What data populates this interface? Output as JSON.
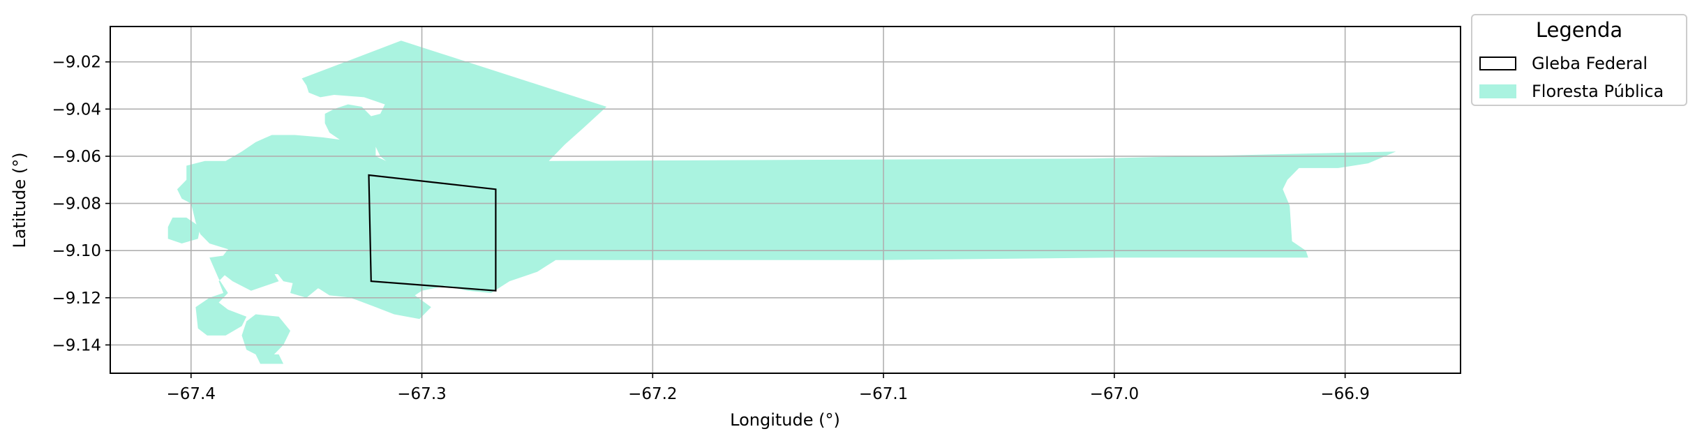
{
  "chart_data": {
    "type": "map",
    "xlabel": "Longitude (°)",
    "ylabel": "Latitude (°)",
    "xlim": [
      -67.435,
      -66.85
    ],
    "ylim": [
      -9.152,
      -9.005
    ],
    "xticks": [
      -67.4,
      -67.3,
      -67.2,
      -67.1,
      -67.0,
      -66.9
    ],
    "xtick_labels": [
      "−67.4",
      "−67.3",
      "−67.2",
      "−67.1",
      "−67.0",
      "−66.9"
    ],
    "yticks": [
      -9.02,
      -9.04,
      -9.06,
      -9.08,
      -9.1,
      -9.12,
      -9.14
    ],
    "ytick_labels": [
      "−9.02",
      "−9.04",
      "−9.06",
      "−9.08",
      "−9.10",
      "−9.12",
      "−9.14"
    ],
    "grid": true,
    "legend": {
      "title": "Legenda",
      "placement": "outside-top-right",
      "items": [
        {
          "label": "Gleba Federal",
          "style": "outline",
          "color": "#000000"
        },
        {
          "label": "Floresta Pública",
          "style": "fill",
          "color": "#aaf3e0"
        }
      ]
    },
    "layers": [
      {
        "name": "Floresta Pública",
        "color": "#aaf3e0",
        "polygons": [
          [
            [
              -67.352,
              -9.027
            ],
            [
              -67.309,
              -9.011
            ],
            [
              -67.22,
              -9.039
            ],
            [
              -67.23,
              -9.048
            ],
            [
              -67.238,
              -9.055
            ],
            [
              -67.245,
              -9.062
            ],
            [
              -67.01,
              -9.061
            ],
            [
              -66.878,
              -9.058
            ],
            [
              -66.89,
              -9.063
            ],
            [
              -66.903,
              -9.065
            ],
            [
              -66.92,
              -9.065
            ],
            [
              -66.925,
              -9.07
            ],
            [
              -66.927,
              -9.074
            ],
            [
              -66.924,
              -9.081
            ],
            [
              -66.923,
              -9.096
            ],
            [
              -66.917,
              -9.1
            ],
            [
              -66.916,
              -9.103
            ],
            [
              -66.95,
              -9.103
            ],
            [
              -67.0,
              -9.103
            ],
            [
              -67.1,
              -9.104
            ],
            [
              -67.2,
              -9.104
            ],
            [
              -67.242,
              -9.104
            ],
            [
              -67.25,
              -9.109
            ],
            [
              -67.262,
              -9.113
            ],
            [
              -67.27,
              -9.118
            ],
            [
              -67.28,
              -9.117
            ],
            [
              -67.29,
              -9.115
            ],
            [
              -67.3,
              -9.117
            ],
            [
              -67.303,
              -9.119
            ],
            [
              -67.296,
              -9.124
            ],
            [
              -67.301,
              -9.129
            ],
            [
              -67.312,
              -9.127
            ],
            [
              -67.32,
              -9.124
            ],
            [
              -67.328,
              -9.121
            ],
            [
              -67.34,
              -9.117
            ],
            [
              -67.36,
              -9.113
            ],
            [
              -67.364,
              -9.108
            ],
            [
              -67.362,
              -9.104
            ],
            [
              -67.36,
              -9.098
            ],
            [
              -67.356,
              -9.094
            ],
            [
              -67.35,
              -9.09
            ],
            [
              -67.342,
              -9.09
            ],
            [
              -67.33,
              -9.089
            ],
            [
              -67.32,
              -9.087
            ],
            [
              -67.31,
              -9.086
            ],
            [
              -67.302,
              -9.082
            ],
            [
              -67.304,
              -9.076
            ],
            [
              -67.308,
              -9.068
            ],
            [
              -67.318,
              -9.06
            ],
            [
              -67.32,
              -9.056
            ],
            [
              -67.334,
              -9.054
            ],
            [
              -67.34,
              -9.05
            ],
            [
              -67.342,
              -9.046
            ],
            [
              -67.342,
              -9.042
            ],
            [
              -67.338,
              -9.04
            ],
            [
              -67.332,
              -9.038
            ],
            [
              -67.326,
              -9.039
            ],
            [
              -67.322,
              -9.043
            ],
            [
              -67.318,
              -9.042
            ],
            [
              -67.316,
              -9.038
            ],
            [
              -67.325,
              -9.035
            ],
            [
              -67.338,
              -9.034
            ],
            [
              -67.344,
              -9.035
            ],
            [
              -67.349,
              -9.033
            ],
            [
              -67.35,
              -9.03
            ]
          ],
          [
            [
              -67.343,
              -9.052
            ],
            [
              -67.32,
              -9.055
            ],
            [
              -67.32,
              -9.06
            ],
            [
              -67.302,
              -9.068
            ],
            [
              -67.3,
              -9.082
            ],
            [
              -67.306,
              -9.09
            ],
            [
              -67.3,
              -9.098
            ],
            [
              -67.312,
              -9.105
            ],
            [
              -67.318,
              -9.112
            ],
            [
              -67.322,
              -9.116
            ],
            [
              -67.33,
              -9.12
            ],
            [
              -67.34,
              -9.119
            ],
            [
              -67.348,
              -9.114
            ],
            [
              -67.36,
              -9.11
            ],
            [
              -67.372,
              -9.11
            ],
            [
              -67.372,
              -9.104
            ],
            [
              -67.382,
              -9.1
            ],
            [
              -67.392,
              -9.097
            ],
            [
              -67.396,
              -9.093
            ],
            [
              -67.398,
              -9.088
            ],
            [
              -67.4,
              -9.08
            ],
            [
              -67.404,
              -9.078
            ],
            [
              -67.406,
              -9.074
            ],
            [
              -67.402,
              -9.07
            ],
            [
              -67.402,
              -9.064
            ],
            [
              -67.394,
              -9.062
            ],
            [
              -67.385,
              -9.062
            ],
            [
              -67.378,
              -9.058
            ],
            [
              -67.372,
              -9.054
            ],
            [
              -67.365,
              -9.051
            ],
            [
              -67.355,
              -9.051
            ]
          ],
          [
            [
              -67.408,
              -9.086
            ],
            [
              -67.402,
              -9.086
            ],
            [
              -67.396,
              -9.09
            ],
            [
              -67.397,
              -9.095
            ],
            [
              -67.404,
              -9.097
            ],
            [
              -67.41,
              -9.095
            ],
            [
              -67.41,
              -9.09
            ]
          ],
          [
            [
              -67.392,
              -9.103
            ],
            [
              -67.385,
              -9.102
            ],
            [
              -67.383,
              -9.108
            ],
            [
              -67.388,
              -9.113
            ],
            [
              -67.386,
              -9.118
            ],
            [
              -67.392,
              -9.12
            ],
            [
              -67.398,
              -9.124
            ],
            [
              -67.397,
              -9.133
            ],
            [
              -67.393,
              -9.136
            ],
            [
              -67.385,
              -9.136
            ],
            [
              -67.378,
              -9.132
            ],
            [
              -67.376,
              -9.128
            ],
            [
              -67.384,
              -9.125
            ],
            [
              -67.388,
              -9.122
            ],
            [
              -67.384,
              -9.118
            ],
            [
              -67.388,
              -9.112
            ]
          ],
          [
            [
              -67.382,
              -9.097
            ],
            [
              -67.374,
              -9.099
            ],
            [
              -67.372,
              -9.104
            ],
            [
              -67.365,
              -9.108
            ],
            [
              -67.362,
              -9.113
            ],
            [
              -67.374,
              -9.117
            ],
            [
              -67.382,
              -9.113
            ],
            [
              -67.386,
              -9.11
            ],
            [
              -67.386,
              -9.102
            ]
          ],
          [
            [
              -67.372,
              -9.127
            ],
            [
              -67.362,
              -9.128
            ],
            [
              -67.357,
              -9.134
            ],
            [
              -67.36,
              -9.14
            ],
            [
              -67.364,
              -9.144
            ],
            [
              -67.372,
              -9.144
            ],
            [
              -67.376,
              -9.142
            ],
            [
              -67.378,
              -9.136
            ],
            [
              -67.376,
              -9.13
            ]
          ],
          [
            [
              -67.372,
              -9.144
            ],
            [
              -67.362,
              -9.144
            ],
            [
              -67.36,
              -9.148
            ],
            [
              -67.37,
              -9.148
            ]
          ],
          [
            [
              -67.355,
              -9.11
            ],
            [
              -67.348,
              -9.11
            ],
            [
              -67.345,
              -9.116
            ],
            [
              -67.35,
              -9.12
            ],
            [
              -67.357,
              -9.118
            ]
          ],
          [
            [
              -67.34,
              -9.102
            ],
            [
              -67.335,
              -9.103
            ],
            [
              -67.333,
              -9.108
            ],
            [
              -67.338,
              -9.11
            ]
          ]
        ]
      },
      {
        "name": "Gleba Federal",
        "color": "#000000",
        "polygons": [
          [
            [
              -67.323,
              -9.068
            ],
            [
              -67.268,
              -9.074
            ],
            [
              -67.268,
              -9.117
            ],
            [
              -67.322,
              -9.113
            ]
          ]
        ]
      }
    ]
  }
}
